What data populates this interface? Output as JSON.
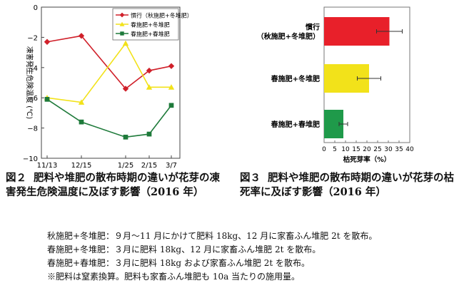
{
  "chart_data": [
    {
      "type": "line",
      "xlabel": "",
      "ylabel": "凍害発生危険温度 (℃)",
      "categories": [
        "11/13",
        "12/15",
        "1/25",
        "2/15",
        "3/7"
      ],
      "ylim": [
        -10,
        0
      ],
      "yticks": [
        "0",
        "−2",
        "−4",
        "−6",
        "−8",
        "−10"
      ],
      "legend_position": "top-right",
      "series": [
        {
          "name": "慣行（秋施肥+冬堆肥）",
          "marker": "diamond",
          "color": "#d0202a",
          "x": [
            "11/13",
            "12/15",
            "1/25",
            "2/15",
            "3/7"
          ],
          "values": [
            -2.3,
            -1.9,
            -5.4,
            -4.2,
            -3.9
          ]
        },
        {
          "name": "春施肥+冬堆肥",
          "marker": "triangle",
          "color": "#f2e21a",
          "x": [
            "11/13",
            "12/15",
            "1/25",
            "2/15",
            "3/7"
          ],
          "values": [
            -6.0,
            -6.3,
            -2.4,
            -5.3,
            -5.3
          ]
        },
        {
          "name": "春施肥+春堆肥",
          "marker": "square",
          "color": "#1e7a3a",
          "x": [
            "11/13",
            "12/15",
            "1/25",
            "2/15",
            "3/7"
          ],
          "values": [
            -6.1,
            -7.6,
            -8.6,
            -8.4,
            -6.5
          ]
        }
      ]
    },
    {
      "type": "bar",
      "orientation": "horizontal",
      "xlabel": "枯死芽率（%）",
      "xlim": [
        0,
        40
      ],
      "xticks": [
        "0",
        "5",
        "10",
        "15",
        "20",
        "25",
        "30",
        "35",
        "40"
      ],
      "categories": [
        [
          "慣行",
          "（秋施肥+冬堆肥）"
        ],
        [
          "春施肥+冬堆肥"
        ],
        [
          "春施肥+春堆肥"
        ]
      ],
      "values": [
        30.5,
        21.0,
        9.0
      ],
      "errors": [
        6.0,
        5.5,
        2.0
      ],
      "colors": [
        "#e8202a",
        "#f2e21a",
        "#1f9a4a"
      ]
    }
  ],
  "captions": {
    "fig2_no": "図２",
    "fig2_text": "肥料や堆肥の散布時期の違いが花芽の凍害発生危険温度に及ぼす影響（2016 年）",
    "fig3_no": "図３",
    "fig3_text": "肥料や堆肥の散布時期の違いが花芽の枯死率に及ぼす影響（2016 年）"
  },
  "notes": [
    "秋施肥+冬堆肥：９月～11 月にかけて肥料 18kg、12 月に家畜ふん堆肥 2t を散布。",
    "春施肥+冬堆肥：３月に肥料 18kg、12 月に家畜ふん堆肥 2t を散布。",
    "春施肥+春堆肥：３月に肥料 18kg および家畜ふん堆肥 2t を散布。",
    "※肥料は窒素換算。肥料も家畜ふん堆肥も 10a 当たりの施用量。"
  ]
}
